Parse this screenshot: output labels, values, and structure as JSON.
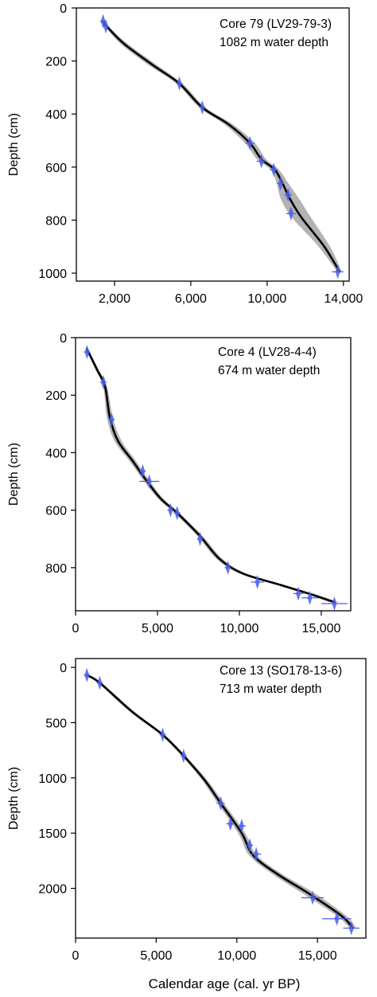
{
  "figure": {
    "ylabel": "Depth (cm)",
    "xlabel": "Calendar age (cal. yr BP)"
  },
  "colors": {
    "envelope": "#b3b3b3",
    "model_line": "#000000",
    "dates": "#4a5ee8",
    "axes": "#000000"
  },
  "chart_data": [
    {
      "type": "line",
      "annotation": [
        "Core 79 (LV29-79-3)",
        "1082 m water depth"
      ],
      "ylabel": "Depth (cm)",
      "xlim": [
        0,
        14300
      ],
      "ylim": [
        1030,
        0
      ],
      "xticks": [
        2000,
        6000,
        10000,
        14000
      ],
      "xtick_labels": [
        "2,000",
        "6,000",
        "10,000",
        "14,000"
      ],
      "yticks": [
        0,
        200,
        400,
        600,
        800,
        1000
      ],
      "ytick_labels": [
        "0",
        "200",
        "400",
        "600",
        "800",
        "1000"
      ],
      "series": [
        {
          "x": [
            1400,
            1600,
            2500,
            4000,
            5400,
            6600,
            8000,
            9100,
            9700,
            10400,
            10800,
            11200,
            11800,
            13000,
            13800
          ],
          "y": [
            50,
            70,
            135,
            215,
            285,
            375,
            440,
            510,
            570,
            610,
            660,
            720,
            790,
            900,
            995
          ],
          "band_width": [
            90,
            100,
            180,
            220,
            160,
            160,
            220,
            260,
            240,
            220,
            300,
            480,
            500,
            300,
            120
          ]
        }
      ],
      "dates": [
        {
          "x": 1400,
          "y": 50,
          "err": 150
        },
        {
          "x": 1550,
          "y": 70,
          "err": 120
        },
        {
          "x": 5400,
          "y": 285,
          "err": 150
        },
        {
          "x": 6600,
          "y": 375,
          "err": 150
        },
        {
          "x": 9100,
          "y": 510,
          "err": 250
        },
        {
          "x": 9700,
          "y": 578,
          "err": 250
        },
        {
          "x": 10350,
          "y": 610,
          "err": 200
        },
        {
          "x": 10700,
          "y": 662,
          "err": 200
        },
        {
          "x": 11100,
          "y": 705,
          "err": 200
        },
        {
          "x": 11250,
          "y": 775,
          "err": 250
        },
        {
          "x": 13700,
          "y": 995,
          "err": 300
        }
      ]
    },
    {
      "type": "line",
      "annotation": [
        "Core 4 (LV28-4-4)",
        "674 m water depth"
      ],
      "ylabel": "Depth (cm)",
      "xlim": [
        0,
        16800
      ],
      "ylim": [
        950,
        0
      ],
      "xticks": [
        0,
        5000,
        10000,
        15000
      ],
      "xtick_labels": [
        "0",
        "5,000",
        "10,000",
        "15,000"
      ],
      "yticks": [
        0,
        200,
        400,
        600,
        800
      ],
      "ytick_labels": [
        "0",
        "200",
        "400",
        "600",
        "800"
      ],
      "series": [
        {
          "x": [
            700,
            1300,
            1800,
            2100,
            2600,
            3500,
            4300,
            5200,
            6200,
            7600,
            8800,
            10200,
            12500,
            14500,
            15800
          ],
          "y": [
            40,
            110,
            170,
            280,
            360,
            430,
            495,
            560,
            610,
            690,
            770,
            820,
            860,
            895,
            920
          ],
          "band_width": [
            80,
            100,
            120,
            180,
            220,
            200,
            180,
            160,
            160,
            160,
            180,
            200,
            220,
            260,
            300
          ]
        }
      ],
      "dates": [
        {
          "x": 700,
          "y": 50,
          "err": 100
        },
        {
          "x": 1700,
          "y": 155,
          "err": 120
        },
        {
          "x": 2200,
          "y": 285,
          "err": 120
        },
        {
          "x": 4100,
          "y": 465,
          "err": 150
        },
        {
          "x": 4500,
          "y": 500,
          "err": 600
        },
        {
          "x": 5800,
          "y": 600,
          "err": 150
        },
        {
          "x": 6200,
          "y": 610,
          "err": 200
        },
        {
          "x": 7600,
          "y": 700,
          "err": 150
        },
        {
          "x": 9300,
          "y": 800,
          "err": 150
        },
        {
          "x": 11100,
          "y": 850,
          "err": 400
        },
        {
          "x": 13600,
          "y": 890,
          "err": 300
        },
        {
          "x": 14300,
          "y": 905,
          "err": 500
        },
        {
          "x": 15800,
          "y": 925,
          "err": 800
        }
      ]
    },
    {
      "type": "line",
      "annotation": [
        "Core 13 (SO178-13-6)",
        "713 m water depth"
      ],
      "ylabel": "Depth (cm)",
      "xlim": [
        0,
        18000
      ],
      "ylim": [
        2450,
        -80
      ],
      "xticks": [
        0,
        5000,
        10000,
        15000
      ],
      "xtick_labels": [
        "0",
        "5,000",
        "10,000",
        "15,000"
      ],
      "yticks": [
        0,
        500,
        1000,
        1500,
        2000
      ],
      "ytick_labels": [
        "0",
        "500",
        "1000",
        "1500",
        "2000"
      ],
      "series": [
        {
          "x": [
            700,
            1500,
            3500,
            5400,
            6700,
            8000,
            9000,
            10300,
            11000,
            12500,
            14500,
            16500,
            17200
          ],
          "y": [
            70,
            140,
            400,
            610,
            800,
            1020,
            1230,
            1500,
            1700,
            1870,
            2050,
            2250,
            2360
          ],
          "band_width": [
            100,
            120,
            140,
            120,
            120,
            160,
            200,
            220,
            240,
            300,
            380,
            300,
            200
          ]
        }
      ],
      "dates": [
        {
          "x": 700,
          "y": 70,
          "err": 100
        },
        {
          "x": 1500,
          "y": 140,
          "err": 120
        },
        {
          "x": 5400,
          "y": 610,
          "err": 150
        },
        {
          "x": 6700,
          "y": 800,
          "err": 150
        },
        {
          "x": 9000,
          "y": 1230,
          "err": 250
        },
        {
          "x": 9600,
          "y": 1415,
          "err": 250
        },
        {
          "x": 10300,
          "y": 1435,
          "err": 250
        },
        {
          "x": 10800,
          "y": 1610,
          "err": 200
        },
        {
          "x": 11200,
          "y": 1690,
          "err": 300
        },
        {
          "x": 14700,
          "y": 2085,
          "err": 700
        },
        {
          "x": 16200,
          "y": 2275,
          "err": 900
        },
        {
          "x": 17100,
          "y": 2360,
          "err": 500
        }
      ]
    }
  ]
}
